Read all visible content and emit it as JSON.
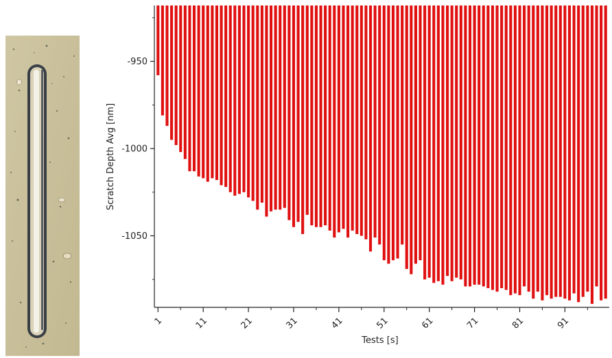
{
  "micrograph": {
    "description": "",
    "colors": {
      "background": "#c9bf9a",
      "groove_edge": "#2e3238",
      "groove_highlight": "#f2efe6"
    }
  },
  "chart_data": {
    "type": "bar",
    "xlabel": "Tests [s]",
    "ylabel": "Scratch Depth Avg [nm]",
    "ylim": [
      -1091,
      -918
    ],
    "yticks": [
      -950,
      -1000,
      -1050
    ],
    "xticks": [
      1,
      11,
      21,
      31,
      41,
      51,
      61,
      71,
      81,
      91
    ],
    "bar_color": "#e01010",
    "grid": false,
    "series": [
      {
        "x": [
          1,
          2,
          3,
          4,
          5,
          6,
          7,
          8,
          9,
          10,
          11,
          12,
          13,
          14,
          15,
          16,
          17,
          18,
          19,
          20,
          21,
          22,
          23,
          24,
          25,
          26,
          27,
          28,
          29,
          30,
          31,
          32,
          33,
          34,
          35,
          36,
          37,
          38,
          39,
          40,
          41,
          42,
          43,
          44,
          45,
          46,
          47,
          48,
          49,
          50,
          51,
          52,
          53,
          54,
          55,
          56,
          57,
          58,
          59,
          60,
          61,
          62,
          63,
          64,
          65,
          66,
          67,
          68,
          69,
          70,
          71,
          72,
          73,
          74,
          75,
          76,
          77,
          78,
          79,
          80,
          81,
          82,
          83,
          84,
          85,
          86,
          87,
          88,
          89,
          90,
          91,
          92,
          93,
          94,
          95,
          96,
          97,
          98,
          99,
          100
        ],
        "values": [
          -958,
          -981,
          -987,
          -995,
          -998,
          -1002,
          -1006,
          -1013,
          -1013,
          -1016,
          -1017,
          -1019,
          -1017,
          -1018,
          -1021,
          -1022,
          -1025,
          -1027,
          -1026,
          -1025,
          -1028,
          -1030,
          -1035,
          -1031,
          -1039,
          -1036,
          -1035,
          -1035,
          -1034,
          -1041,
          -1045,
          -1042,
          -1049,
          -1038,
          -1044,
          -1045,
          -1045,
          -1044,
          -1047,
          -1051,
          -1048,
          -1046,
          -1051,
          -1047,
          -1049,
          -1050,
          -1052,
          -1059,
          -1051,
          -1055,
          -1064,
          -1066,
          -1064,
          -1063,
          -1055,
          -1069,
          -1072,
          -1066,
          -1064,
          -1075,
          -1074,
          -1077,
          -1076,
          -1078,
          -1073,
          -1076,
          -1074,
          -1075,
          -1079,
          -1079,
          -1078,
          -1078,
          -1079,
          -1080,
          -1081,
          -1082,
          -1080,
          -1081,
          -1084,
          -1083,
          -1084,
          -1079,
          -1082,
          -1086,
          -1082,
          -1087,
          -1084,
          -1086,
          -1085,
          -1085,
          -1086,
          -1087,
          -1083,
          -1088,
          -1085,
          -1082,
          -1089,
          -1079,
          -1087,
          -1086
        ]
      }
    ]
  }
}
